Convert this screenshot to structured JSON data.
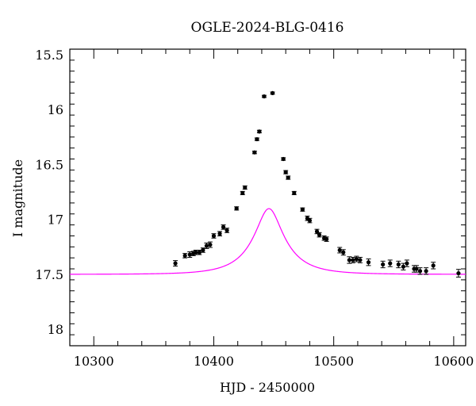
{
  "chart_data": {
    "type": "scatter",
    "title": "OGLE-2024-BLG-0416",
    "xlabel": "HJD - 2450000",
    "ylabel": "I magnitude",
    "xlim": [
      10280,
      10610
    ],
    "ylim": [
      18.15,
      15.45
    ],
    "y_inverted": true,
    "x_ticks": [
      10300,
      10400,
      10500,
      10600
    ],
    "y_ticks": [
      15.5,
      16,
      16.5,
      17,
      17.5,
      18
    ],
    "y_tick_labels": [
      "15.5",
      "16",
      "16.5",
      "17",
      "17.5",
      "18"
    ],
    "x_tick_labels": [
      "10300",
      "10400",
      "10500",
      "10600"
    ],
    "grid": false,
    "colors": {
      "points": "#000000",
      "model": "#ff00ff",
      "axes": "#000000"
    },
    "series": [
      {
        "kind": "observed",
        "x": [
          10368,
          10376,
          10380,
          10383,
          10385,
          10388,
          10391,
          10394,
          10397,
          10400,
          10405,
          10408,
          10411,
          10419,
          10424,
          10426,
          10434,
          10436,
          10438,
          10442,
          10449,
          10458,
          10460,
          10462,
          10467,
          10474,
          10478,
          10480,
          10486,
          10488,
          10492,
          10494,
          10505,
          10508,
          10513,
          10516,
          10519,
          10522,
          10529,
          10541,
          10547,
          10554,
          10558,
          10561,
          10567,
          10569,
          10572,
          10577,
          10583,
          10604
        ],
        "y": [
          17.4,
          17.33,
          17.32,
          17.31,
          17.3,
          17.3,
          17.28,
          17.24,
          17.23,
          17.15,
          17.13,
          17.07,
          17.1,
          16.9,
          16.76,
          16.71,
          16.39,
          16.27,
          16.2,
          15.88,
          15.85,
          16.45,
          16.57,
          16.62,
          16.76,
          16.91,
          16.99,
          17.01,
          17.11,
          17.14,
          17.17,
          17.18,
          17.28,
          17.3,
          17.37,
          17.37,
          17.36,
          17.37,
          17.39,
          17.41,
          17.4,
          17.41,
          17.43,
          17.4,
          17.45,
          17.45,
          17.47,
          17.47,
          17.42,
          17.49
        ],
        "errors": [
          0.025,
          0.02,
          0.025,
          0.02,
          0.02,
          0.02,
          0.02,
          0.025,
          0.025,
          0.02,
          0.02,
          0.02,
          0.02,
          0.015,
          0.015,
          0.015,
          0.012,
          0.012,
          0.012,
          0.01,
          0.01,
          0.012,
          0.015,
          0.015,
          0.015,
          0.015,
          0.02,
          0.02,
          0.02,
          0.02,
          0.02,
          0.02,
          0.025,
          0.025,
          0.03,
          0.025,
          0.025,
          0.025,
          0.03,
          0.03,
          0.03,
          0.03,
          0.03,
          0.03,
          0.03,
          0.03,
          0.03,
          0.03,
          0.03,
          0.035
        ]
      },
      {
        "kind": "model",
        "t0": 10446,
        "tE": 30,
        "u0": 0.35,
        "baseline_mag": 17.5,
        "blending_fs": 0.37
      }
    ]
  }
}
